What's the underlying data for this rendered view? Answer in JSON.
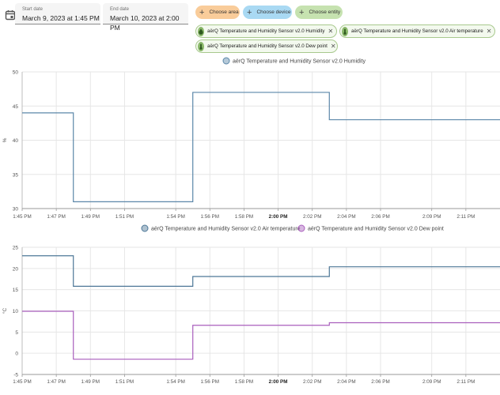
{
  "date_range": {
    "start": {
      "label": "Start date",
      "value": "March 9, 2023 at 1:45 PM"
    },
    "end": {
      "label": "End date",
      "value": "March 10, 2023 at 2:00 PM"
    }
  },
  "target_picker": {
    "area_label": "Choose area",
    "device_label": "Choose device",
    "entity_label": "Choose entity",
    "selected": [
      {
        "label": "aërQ Temperature and Humidity Sensor v2.0 Humidity",
        "icon": "water-percent-icon"
      },
      {
        "label": "aërQ Temperature and Humidity Sensor v2.0 Air temperature",
        "icon": "thermometer-icon"
      },
      {
        "label": "aërQ Temperature and Humidity Sensor v2.0 Dew point",
        "icon": "thermometer-icon"
      }
    ]
  },
  "colors": {
    "humidity": "#5b87a9",
    "air_temperature": "#4d7797",
    "dew_point": "#a95fbd",
    "grid": "#e6e6e6"
  },
  "chart_data": [
    {
      "type": "line",
      "step": true,
      "title": "",
      "xlabel": "",
      "ylabel": "%",
      "ylim": [
        30,
        50
      ],
      "yticks": [
        30,
        35,
        40,
        45,
        50
      ],
      "xlim": [
        "1:45 PM",
        "2:13 PM"
      ],
      "xticks": [
        "1:45 PM",
        "1:47 PM",
        "1:49 PM",
        "1:51 PM",
        "1:54 PM",
        "1:56 PM",
        "1:58 PM",
        "2:00 PM",
        "2:02 PM",
        "2:04 PM",
        "2:06 PM",
        "2:09 PM",
        "2:11 PM"
      ],
      "grid": true,
      "legend_position": "top",
      "series": [
        {
          "name": "aërQ Temperature and Humidity Sensor v2.0 Humidity",
          "x": [
            "1:45 PM",
            "1:48 PM",
            "1:55 PM",
            "2:03 PM",
            "2:13 PM"
          ],
          "y": [
            44,
            31,
            47,
            43,
            43
          ]
        }
      ]
    },
    {
      "type": "line",
      "step": true,
      "title": "",
      "xlabel": "",
      "ylabel": "°C",
      "ylim": [
        -5,
        25
      ],
      "yticks": [
        -5,
        0,
        5,
        10,
        15,
        20,
        25
      ],
      "xlim": [
        "1:45 PM",
        "2:13 PM"
      ],
      "xticks": [
        "1:45 PM",
        "1:47 PM",
        "1:49 PM",
        "1:51 PM",
        "1:54 PM",
        "1:56 PM",
        "1:58 PM",
        "2:00 PM",
        "2:02 PM",
        "2:04 PM",
        "2:06 PM",
        "2:09 PM",
        "2:11 PM"
      ],
      "grid": true,
      "legend_position": "top",
      "series": [
        {
          "name": "aërQ Temperature and Humidity Sensor v2.0 Air temperature",
          "x": [
            "1:45 PM",
            "1:48 PM",
            "1:55 PM",
            "2:03 PM",
            "2:13 PM"
          ],
          "y": [
            23,
            15.8,
            18.1,
            20.4,
            20.4
          ]
        },
        {
          "name": "aërQ Temperature and Humidity Sensor v2.0 Dew point",
          "x": [
            "1:45 PM",
            "1:48 PM",
            "1:55 PM",
            "2:03 PM",
            "2:13 PM"
          ],
          "y": [
            9.9,
            -1.4,
            6.6,
            7.2,
            7.2
          ]
        }
      ]
    }
  ]
}
